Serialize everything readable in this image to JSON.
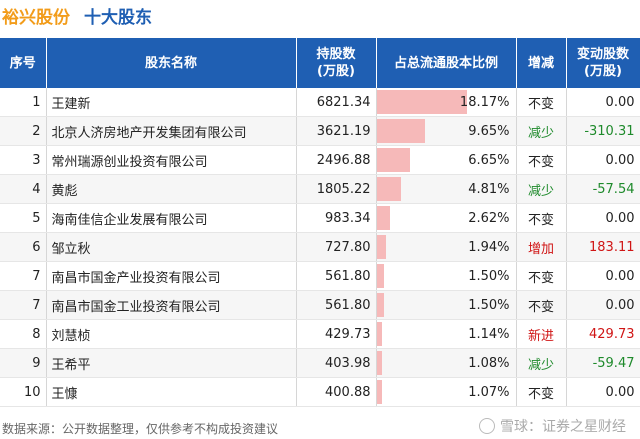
{
  "header": {
    "company": "裕兴股份",
    "subtitle": "十大股东"
  },
  "table": {
    "columns": [
      "序号",
      "股东名称",
      "持股数\n(万股)",
      "占总流通股本比例",
      "增减",
      "变动股数\n(万股)"
    ],
    "rows": [
      {
        "rank": "1",
        "name": "王建新",
        "shares": "6821.34",
        "pct_text": "18.17%",
        "pct": 18.17,
        "status": "不变",
        "status_type": "same",
        "change": "0.00",
        "change_type": "same"
      },
      {
        "rank": "2",
        "name": "北京人济房地产开发集团有限公司",
        "shares": "3621.19",
        "pct_text": "9.65%",
        "pct": 9.65,
        "status": "减少",
        "status_type": "down",
        "change": "-310.31",
        "change_type": "down"
      },
      {
        "rank": "3",
        "name": "常州瑞源创业投资有限公司",
        "shares": "2496.88",
        "pct_text": "6.65%",
        "pct": 6.65,
        "status": "不变",
        "status_type": "same",
        "change": "0.00",
        "change_type": "same"
      },
      {
        "rank": "4",
        "name": "黄彪",
        "shares": "1805.22",
        "pct_text": "4.81%",
        "pct": 4.81,
        "status": "减少",
        "status_type": "down",
        "change": "-57.54",
        "change_type": "down"
      },
      {
        "rank": "5",
        "name": "海南佳信企业发展有限公司",
        "shares": "983.34",
        "pct_text": "2.62%",
        "pct": 2.62,
        "status": "不变",
        "status_type": "same",
        "change": "0.00",
        "change_type": "same"
      },
      {
        "rank": "6",
        "name": "邹立秋",
        "shares": "727.80",
        "pct_text": "1.94%",
        "pct": 1.94,
        "status": "增加",
        "status_type": "up",
        "change": "183.11",
        "change_type": "up"
      },
      {
        "rank": "7",
        "name": "南昌市国金产业投资有限公司",
        "shares": "561.80",
        "pct_text": "1.50%",
        "pct": 1.5,
        "status": "不变",
        "status_type": "same",
        "change": "0.00",
        "change_type": "same"
      },
      {
        "rank": "7",
        "name": "南昌市国金工业投资有限公司",
        "shares": "561.80",
        "pct_text": "1.50%",
        "pct": 1.5,
        "status": "不变",
        "status_type": "same",
        "change": "0.00",
        "change_type": "same"
      },
      {
        "rank": "8",
        "name": "刘慧桢",
        "shares": "429.73",
        "pct_text": "1.14%",
        "pct": 1.14,
        "status": "新进",
        "status_type": "up",
        "change": "429.73",
        "change_type": "up"
      },
      {
        "rank": "9",
        "name": "王希平",
        "shares": "403.98",
        "pct_text": "1.08%",
        "pct": 1.08,
        "status": "减少",
        "status_type": "down",
        "change": "-59.47",
        "change_type": "down"
      },
      {
        "rank": "10",
        "name": "王慷",
        "shares": "400.88",
        "pct_text": "1.07%",
        "pct": 1.07,
        "status": "不变",
        "status_type": "same",
        "change": "0.00",
        "change_type": "same"
      }
    ]
  },
  "footer": {
    "source": "数据来源：公开数据整理，仅供参考不构成投资建议"
  },
  "watermark": {
    "text": "雪球：证券之星财经"
  },
  "colors": {
    "header_bg": "#1f5fb3",
    "company": "#f29c1a",
    "bar": "#f6b9b9",
    "up": "#d01515",
    "down": "#1e8a2b"
  }
}
